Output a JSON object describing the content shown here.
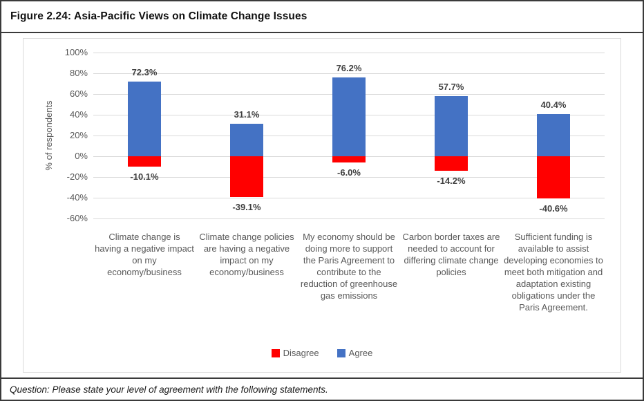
{
  "figure": {
    "title": "Figure 2.24: Asia-Pacific Views on Climate Change Issues",
    "question": "Question: Please state your level of agreement with the following statements."
  },
  "chart_data": {
    "type": "bar",
    "subtype": "diverging-stacked-column",
    "title": "",
    "xlabel": "",
    "ylabel": "% of respondents",
    "ylim": [
      -60,
      100
    ],
    "ytick_step": 20,
    "ytick_labels": [
      "100%",
      "80%",
      "60%",
      "40%",
      "20%",
      "0%",
      "-20%",
      "-40%",
      "-60%"
    ],
    "grid": true,
    "legend_position": "bottom",
    "categories": [
      "Climate change is having a negative impact on my economy/business",
      "Climate change policies are having a negative impact on my economy/business",
      "My economy should be doing more to support the Paris Agreement to contribute to the reduction of greenhouse gas emissions",
      "Carbon border taxes are needed to account for differing climate change policies",
      "Sufficient funding is available to assist developing economies to meet both mitigation and adaptation existing obligations under the Paris Agreement."
    ],
    "series": [
      {
        "name": "Disagree",
        "color": "#ff0000",
        "values": [
          -10.1,
          -39.1,
          -6.0,
          -14.2,
          -40.6
        ],
        "labels": [
          "-10.1%",
          "-39.1%",
          "-6.0%",
          "-14.2%",
          "-40.6%"
        ]
      },
      {
        "name": "Agree",
        "color": "#4472c4",
        "values": [
          72.3,
          31.1,
          76.2,
          57.7,
          40.4
        ],
        "labels": [
          "72.3%",
          "31.1%",
          "76.2%",
          "57.7%",
          "40.4%"
        ]
      }
    ],
    "colors": {
      "gridline": "#d9d9d9",
      "axis_text": "#595959",
      "data_label_text": "#404040",
      "border_dark": "#3a3a3a",
      "panel_border": "#d9d9d9"
    }
  }
}
